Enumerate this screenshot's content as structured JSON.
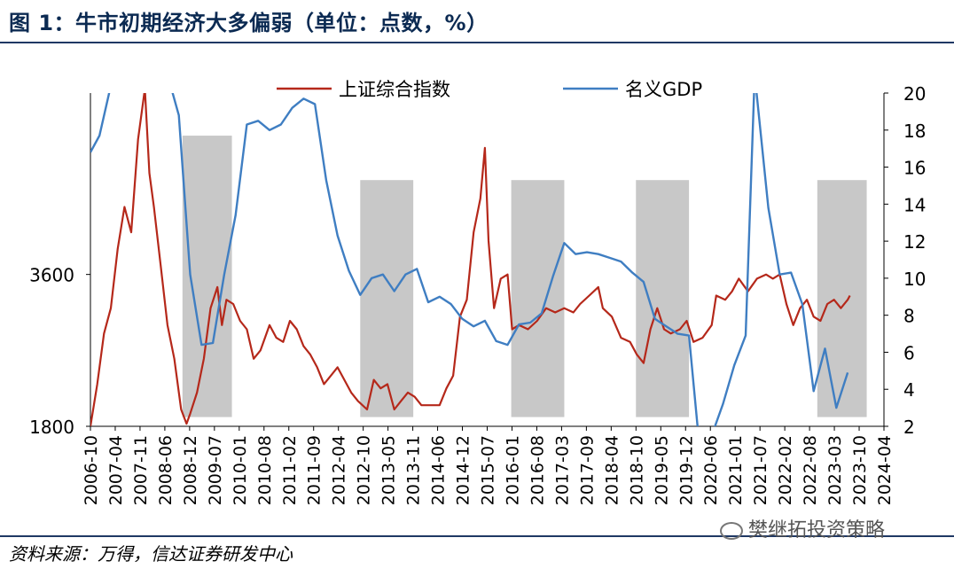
{
  "title": "图 1：牛市初期经济大多偏弱（单位：点数，%）",
  "source": "资料来源：万得，信达证券研发中心",
  "watermark": "樊继拓投资策略",
  "chart_data": {
    "type": "line",
    "x_tick_labels": [
      "2006-10",
      "2007-04",
      "2007-11",
      "2008-06",
      "2008-12",
      "2009-07",
      "2010-01",
      "2010-08",
      "2011-02",
      "2011-09",
      "2012-04",
      "2012-10",
      "2013-05",
      "2013-11",
      "2014-06",
      "2014-12",
      "2015-07",
      "2016-01",
      "2016-08",
      "2017-03",
      "2017-09",
      "2018-04",
      "2018-10",
      "2019-05",
      "2019-12",
      "2020-06",
      "2021-01",
      "2021-07",
      "2022-02",
      "2022-08",
      "2023-03",
      "2023-10",
      "2024-04"
    ],
    "y_left": {
      "ylim": [
        1800,
        5750
      ],
      "ticks": [
        1800,
        3600
      ],
      "tick_labels": [
        "1800",
        "3600"
      ]
    },
    "y_right": {
      "ylim": [
        2,
        20
      ],
      "ticks": [
        2,
        4,
        6,
        8,
        10,
        12,
        14,
        16,
        18,
        20
      ],
      "tick_labels": [
        "2",
        "4",
        "6",
        "8",
        "10",
        "12",
        "14",
        "16",
        "18",
        "20"
      ]
    },
    "shaded_periods": [
      {
        "start": 2008.83,
        "end": 2009.92
      },
      {
        "start": 2012.75,
        "end": 2013.92
      },
      {
        "start": 2016.08,
        "end": 2017.25
      },
      {
        "start": 2018.83,
        "end": 2020.0
      },
      {
        "start": 2022.83,
        "end": 2023.92
      }
    ],
    "series": [
      {
        "name": "上证综合指数",
        "axis": "left",
        "color": "#b5281a",
        "points": [
          [
            2006.8,
            1800
          ],
          [
            2006.95,
            2300
          ],
          [
            2007.1,
            2900
          ],
          [
            2007.25,
            3200
          ],
          [
            2007.4,
            3900
          ],
          [
            2007.55,
            4400
          ],
          [
            2007.7,
            4100
          ],
          [
            2007.85,
            5200
          ],
          [
            2008.0,
            5800
          ],
          [
            2008.1,
            4800
          ],
          [
            2008.2,
            4400
          ],
          [
            2008.35,
            3700
          ],
          [
            2008.5,
            3000
          ],
          [
            2008.65,
            2600
          ],
          [
            2008.8,
            2000
          ],
          [
            2008.92,
            1830
          ],
          [
            2009.0,
            1950
          ],
          [
            2009.15,
            2200
          ],
          [
            2009.3,
            2600
          ],
          [
            2009.45,
            3200
          ],
          [
            2009.6,
            3450
          ],
          [
            2009.7,
            3000
          ],
          [
            2009.8,
            3300
          ],
          [
            2009.95,
            3250
          ],
          [
            2010.1,
            3050
          ],
          [
            2010.25,
            2950
          ],
          [
            2010.4,
            2600
          ],
          [
            2010.55,
            2700
          ],
          [
            2010.75,
            3000
          ],
          [
            2010.9,
            2850
          ],
          [
            2011.05,
            2800
          ],
          [
            2011.2,
            3050
          ],
          [
            2011.35,
            2950
          ],
          [
            2011.5,
            2750
          ],
          [
            2011.65,
            2650
          ],
          [
            2011.8,
            2500
          ],
          [
            2011.95,
            2300
          ],
          [
            2012.1,
            2400
          ],
          [
            2012.25,
            2500
          ],
          [
            2012.4,
            2350
          ],
          [
            2012.55,
            2200
          ],
          [
            2012.7,
            2100
          ],
          [
            2012.9,
            2000
          ],
          [
            2013.05,
            2350
          ],
          [
            2013.2,
            2250
          ],
          [
            2013.35,
            2300
          ],
          [
            2013.5,
            2000
          ],
          [
            2013.65,
            2100
          ],
          [
            2013.8,
            2200
          ],
          [
            2013.95,
            2150
          ],
          [
            2014.1,
            2050
          ],
          [
            2014.3,
            2050
          ],
          [
            2014.5,
            2050
          ],
          [
            2014.65,
            2250
          ],
          [
            2014.8,
            2400
          ],
          [
            2014.95,
            3100
          ],
          [
            2015.1,
            3300
          ],
          [
            2015.25,
            4100
          ],
          [
            2015.4,
            4500
          ],
          [
            2015.5,
            5100
          ],
          [
            2015.58,
            4000
          ],
          [
            2015.7,
            3200
          ],
          [
            2015.85,
            3550
          ],
          [
            2016.0,
            3600
          ],
          [
            2016.1,
            2950
          ],
          [
            2016.25,
            3000
          ],
          [
            2016.45,
            2950
          ],
          [
            2016.65,
            3050
          ],
          [
            2016.85,
            3200
          ],
          [
            2017.05,
            3150
          ],
          [
            2017.25,
            3200
          ],
          [
            2017.45,
            3150
          ],
          [
            2017.6,
            3250
          ],
          [
            2017.8,
            3350
          ],
          [
            2018.0,
            3450
          ],
          [
            2018.1,
            3200
          ],
          [
            2018.3,
            3100
          ],
          [
            2018.5,
            2850
          ],
          [
            2018.7,
            2800
          ],
          [
            2018.85,
            2650
          ],
          [
            2019.0,
            2550
          ],
          [
            2019.15,
            2950
          ],
          [
            2019.3,
            3200
          ],
          [
            2019.45,
            2950
          ],
          [
            2019.6,
            2900
          ],
          [
            2019.8,
            2950
          ],
          [
            2019.95,
            3050
          ],
          [
            2020.1,
            2800
          ],
          [
            2020.3,
            2850
          ],
          [
            2020.5,
            3000
          ],
          [
            2020.6,
            3350
          ],
          [
            2020.8,
            3300
          ],
          [
            2020.95,
            3400
          ],
          [
            2021.1,
            3550
          ],
          [
            2021.3,
            3400
          ],
          [
            2021.5,
            3550
          ],
          [
            2021.7,
            3600
          ],
          [
            2021.85,
            3550
          ],
          [
            2022.0,
            3600
          ],
          [
            2022.15,
            3250
          ],
          [
            2022.3,
            3000
          ],
          [
            2022.45,
            3200
          ],
          [
            2022.6,
            3300
          ],
          [
            2022.75,
            3100
          ],
          [
            2022.9,
            3050
          ],
          [
            2023.05,
            3250
          ],
          [
            2023.2,
            3300
          ],
          [
            2023.35,
            3200
          ],
          [
            2023.5,
            3300
          ],
          [
            2023.55,
            3350
          ]
        ]
      },
      {
        "name": "名义GDP",
        "axis": "right",
        "color": "#3f7ec2",
        "points": [
          [
            2006.8,
            16.8
          ],
          [
            2007.0,
            17.7
          ],
          [
            2007.25,
            20.4
          ],
          [
            2008.5,
            21.0
          ],
          [
            2008.75,
            18.8
          ],
          [
            2009.0,
            10.2
          ],
          [
            2009.25,
            6.4
          ],
          [
            2009.5,
            6.5
          ],
          [
            2009.75,
            10.2
          ],
          [
            2010.0,
            13.4
          ],
          [
            2010.25,
            18.3
          ],
          [
            2010.5,
            18.5
          ],
          [
            2010.75,
            18.0
          ],
          [
            2011.0,
            18.3
          ],
          [
            2011.25,
            19.2
          ],
          [
            2011.5,
            19.7
          ],
          [
            2011.75,
            19.4
          ],
          [
            2012.0,
            15.3
          ],
          [
            2012.25,
            12.3
          ],
          [
            2012.5,
            10.4
          ],
          [
            2012.75,
            9.1
          ],
          [
            2013.0,
            10.0
          ],
          [
            2013.25,
            10.2
          ],
          [
            2013.5,
            9.3
          ],
          [
            2013.75,
            10.2
          ],
          [
            2014.0,
            10.5
          ],
          [
            2014.25,
            8.7
          ],
          [
            2014.5,
            9.0
          ],
          [
            2014.75,
            8.6
          ],
          [
            2015.0,
            7.8
          ],
          [
            2015.25,
            7.4
          ],
          [
            2015.5,
            7.7
          ],
          [
            2015.75,
            6.6
          ],
          [
            2016.0,
            6.4
          ],
          [
            2016.25,
            7.5
          ],
          [
            2016.5,
            7.6
          ],
          [
            2016.75,
            8.1
          ],
          [
            2017.0,
            10.1
          ],
          [
            2017.25,
            11.9
          ],
          [
            2017.5,
            11.3
          ],
          [
            2017.75,
            11.4
          ],
          [
            2018.0,
            11.3
          ],
          [
            2018.25,
            11.1
          ],
          [
            2018.5,
            10.9
          ],
          [
            2018.75,
            10.3
          ],
          [
            2019.0,
            9.8
          ],
          [
            2019.25,
            7.8
          ],
          [
            2019.5,
            7.4
          ],
          [
            2019.75,
            7.0
          ],
          [
            2020.0,
            6.9
          ],
          [
            2020.25,
            0.4
          ],
          [
            2020.5,
            1.5
          ],
          [
            2020.75,
            3.2
          ],
          [
            2021.0,
            5.3
          ],
          [
            2021.25,
            6.9
          ],
          [
            2021.45,
            21.0
          ],
          [
            2021.75,
            13.8
          ],
          [
            2022.0,
            10.2
          ],
          [
            2022.25,
            10.3
          ],
          [
            2022.5,
            8.6
          ],
          [
            2022.75,
            3.9
          ],
          [
            2023.0,
            6.2
          ],
          [
            2023.25,
            3.0
          ],
          [
            2023.5,
            4.9
          ]
        ]
      }
    ],
    "legend": {
      "placement": "top-center"
    }
  }
}
